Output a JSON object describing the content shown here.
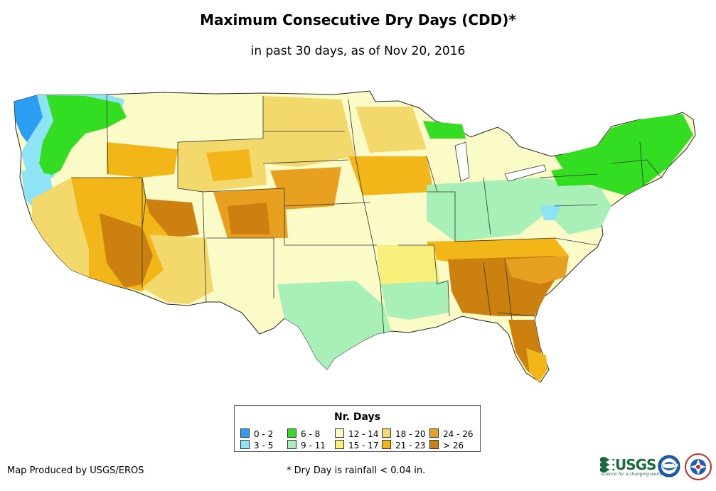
{
  "title": "Maximum Consecutive Dry Days (CDD)*",
  "subtitle": "in past 30 days, as of Nov 20, 2016",
  "legend": {
    "title": "Nr. Days",
    "items": [
      {
        "label": "0 - 2",
        "color": "#2a9df4"
      },
      {
        "label": "3 - 5",
        "color": "#8ee4f5"
      },
      {
        "label": "6 - 8",
        "color": "#33dd22"
      },
      {
        "label": "9 - 11",
        "color": "#a8f0b8"
      },
      {
        "label": "12 - 14",
        "color": "#fbfbc8"
      },
      {
        "label": "15 - 17",
        "color": "#f8f07a"
      },
      {
        "label": "18 - 20",
        "color": "#f3d86c"
      },
      {
        "label": "21 - 23",
        "color": "#f2b619"
      },
      {
        "label": "24 - 26",
        "color": "#e8a020"
      },
      {
        "label": "> 26",
        "color": "#cc8010"
      }
    ]
  },
  "footer": {
    "producer": "Map Produced by USGS/EROS",
    "note": "* Dry Day is rainfall < 0.04 in."
  },
  "logos": {
    "usgs": "USGS",
    "usgs_tagline": "science for a changing world",
    "noaa": "noaa"
  }
}
